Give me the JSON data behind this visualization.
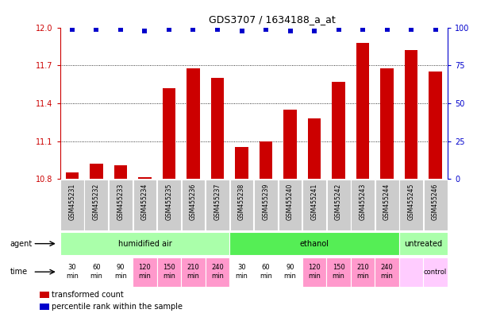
{
  "title": "GDS3707 / 1634188_a_at",
  "samples": [
    "GSM455231",
    "GSM455232",
    "GSM455233",
    "GSM455234",
    "GSM455235",
    "GSM455236",
    "GSM455237",
    "GSM455238",
    "GSM455239",
    "GSM455240",
    "GSM455241",
    "GSM455242",
    "GSM455243",
    "GSM455244",
    "GSM455245",
    "GSM455246"
  ],
  "bar_values": [
    10.85,
    10.92,
    10.91,
    10.81,
    11.52,
    11.68,
    11.6,
    11.05,
    11.1,
    11.35,
    11.28,
    11.57,
    11.88,
    11.68,
    11.82,
    11.65
  ],
  "percentile_values": [
    99,
    99,
    99,
    98,
    99,
    99,
    99,
    98,
    99,
    98,
    98,
    99,
    99,
    99,
    99,
    99
  ],
  "bar_color": "#cc0000",
  "dot_color": "#0000cc",
  "ylim_left": [
    10.8,
    12.0
  ],
  "ylim_right": [
    0,
    100
  ],
  "yticks_left": [
    10.8,
    11.1,
    11.4,
    11.7,
    12.0
  ],
  "yticks_right": [
    0,
    25,
    50,
    75,
    100
  ],
  "agent_groups": [
    {
      "label": "humidified air",
      "start": 0,
      "end": 7,
      "color": "#aaffaa"
    },
    {
      "label": "ethanol",
      "start": 7,
      "end": 14,
      "color": "#55ee55"
    },
    {
      "label": "untreated",
      "start": 14,
      "end": 16,
      "color": "#aaffaa"
    }
  ],
  "time_labels_row1": [
    "30",
    "60",
    "90",
    "120",
    "150",
    "210",
    "240",
    "30",
    "60",
    "90",
    "120",
    "150",
    "210",
    "240",
    "",
    "control"
  ],
  "time_labels_row2": [
    "min",
    "min",
    "min",
    "min",
    "min",
    "min",
    "min",
    "min",
    "min",
    "min",
    "min",
    "min",
    "min",
    "min",
    "",
    ""
  ],
  "time_colors": [
    "#ffffff",
    "#ffffff",
    "#ffffff",
    "#ff99cc",
    "#ff99cc",
    "#ff99cc",
    "#ff99cc",
    "#ffffff",
    "#ffffff",
    "#ffffff",
    "#ff99cc",
    "#ff99cc",
    "#ff99cc",
    "#ff99cc",
    "#ffccff",
    "#ffccff"
  ],
  "axis_label_color": "#cc0000",
  "right_axis_color": "#0000cc",
  "background_color": "#ffffff",
  "grid_color": "#000000",
  "sample_box_color": "#cccccc",
  "border_color": "#aaaaaa",
  "legend_items": [
    {
      "color": "#cc0000",
      "label": "transformed count"
    },
    {
      "color": "#0000cc",
      "label": "percentile rank within the sample"
    }
  ]
}
